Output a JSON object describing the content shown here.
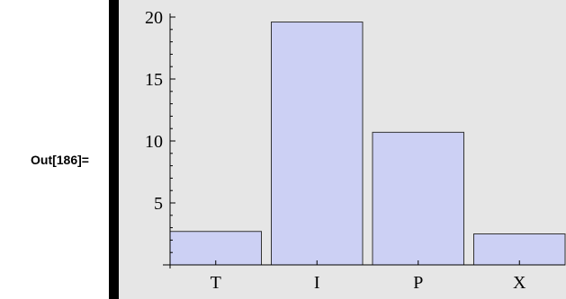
{
  "output": {
    "label": "Out[186]="
  },
  "colors": {
    "background": "#e6e6e6",
    "bar_fill": "#ccd0f4",
    "bar_stroke": "#333333",
    "axis": "#000000",
    "output_bar": "#000000"
  },
  "chart_data": {
    "type": "bar",
    "title": "",
    "xlabel": "",
    "ylabel": "",
    "categories": [
      "T",
      "I",
      "P",
      "X"
    ],
    "values": [
      2.7,
      19.6,
      10.7,
      2.5
    ],
    "ylim": [
      0,
      20
    ],
    "yticks": [
      5,
      10,
      15,
      20
    ],
    "ytick_labels": [
      "5",
      "10",
      "15",
      "20"
    ],
    "grid": false,
    "legend": "none"
  }
}
